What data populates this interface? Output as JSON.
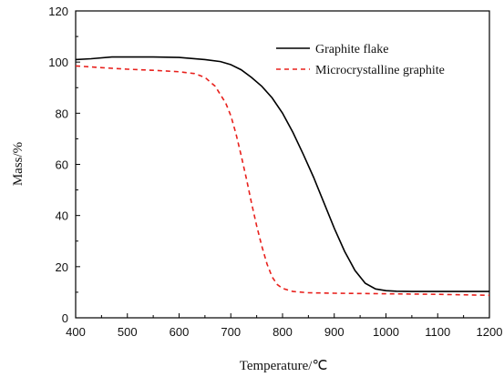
{
  "chart_data": {
    "type": "line",
    "title": "",
    "xlabel": "Temperature/℃",
    "ylabel": "Mass/%",
    "xlim": [
      400,
      1200
    ],
    "ylim": [
      0,
      120
    ],
    "xticks": [
      400,
      500,
      600,
      700,
      800,
      900,
      1000,
      1100,
      1200
    ],
    "yticks": [
      0,
      20,
      40,
      60,
      80,
      100,
      120
    ],
    "grid": false,
    "legend_position": "top-right",
    "series": [
      {
        "name": "Graphite flake",
        "color": "#000000",
        "style": "solid",
        "x": [
          400,
          430,
          470,
          500,
          550,
          600,
          650,
          680,
          700,
          720,
          740,
          760,
          780,
          800,
          820,
          840,
          860,
          870,
          880,
          900,
          920,
          940,
          960,
          980,
          1000,
          1020,
          1050,
          1100,
          1150,
          1200
        ],
        "y": [
          101,
          101.3,
          102,
          102,
          102,
          101.8,
          101,
          100.2,
          99,
          97,
          94,
          90.5,
          86,
          80,
          72.5,
          64,
          55,
          50,
          45,
          35,
          26,
          18.5,
          13.5,
          11.3,
          10.6,
          10.4,
          10.3,
          10.3,
          10.3,
          10.3
        ]
      },
      {
        "name": "Microcrystalline graphite",
        "color": "#e8201c",
        "style": "dashed",
        "x": [
          400,
          450,
          500,
          550,
          600,
          630,
          650,
          670,
          690,
          700,
          710,
          720,
          730,
          740,
          750,
          760,
          770,
          780,
          790,
          800,
          820,
          850,
          900,
          1000,
          1100,
          1200
        ],
        "y": [
          98.5,
          97.8,
          97.2,
          96.8,
          96.2,
          95.5,
          94,
          90.5,
          84,
          79,
          72,
          63.5,
          54.5,
          45,
          36,
          28,
          21,
          16,
          13,
          11.5,
          10.3,
          9.8,
          9.6,
          9.4,
          9.2,
          8.8
        ]
      }
    ]
  }
}
